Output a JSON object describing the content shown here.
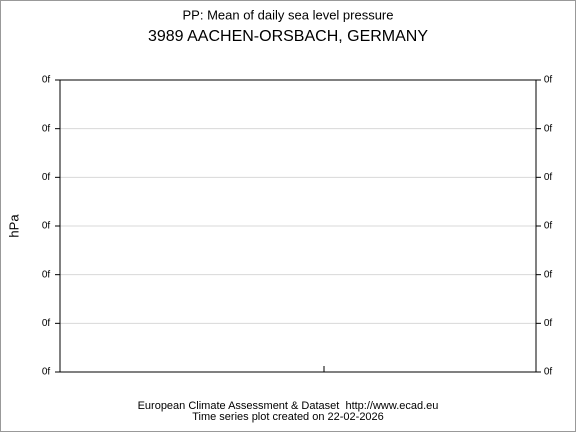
{
  "chart_data": {
    "type": "line",
    "title": "PP: Mean of daily sea level pressure",
    "subtitle": "3989 AACHEN-ORSBACH, GERMANY",
    "ylabel": "hPa",
    "series": [],
    "ylim": [
      0,
      6
    ],
    "yticks": [
      {
        "value": 0,
        "label": "0f"
      },
      {
        "value": 1,
        "label": "0f"
      },
      {
        "value": 2,
        "label": "0f"
      },
      {
        "value": 3,
        "label": "0f"
      },
      {
        "value": 4,
        "label": "0f"
      },
      {
        "value": 5,
        "label": "0f"
      },
      {
        "value": 6,
        "label": "0f"
      }
    ],
    "grid": true,
    "footer": [
      "European Climate Assessment & Dataset  http://www.ecad.eu",
      "Time series plot created on 22-02-2026"
    ]
  }
}
